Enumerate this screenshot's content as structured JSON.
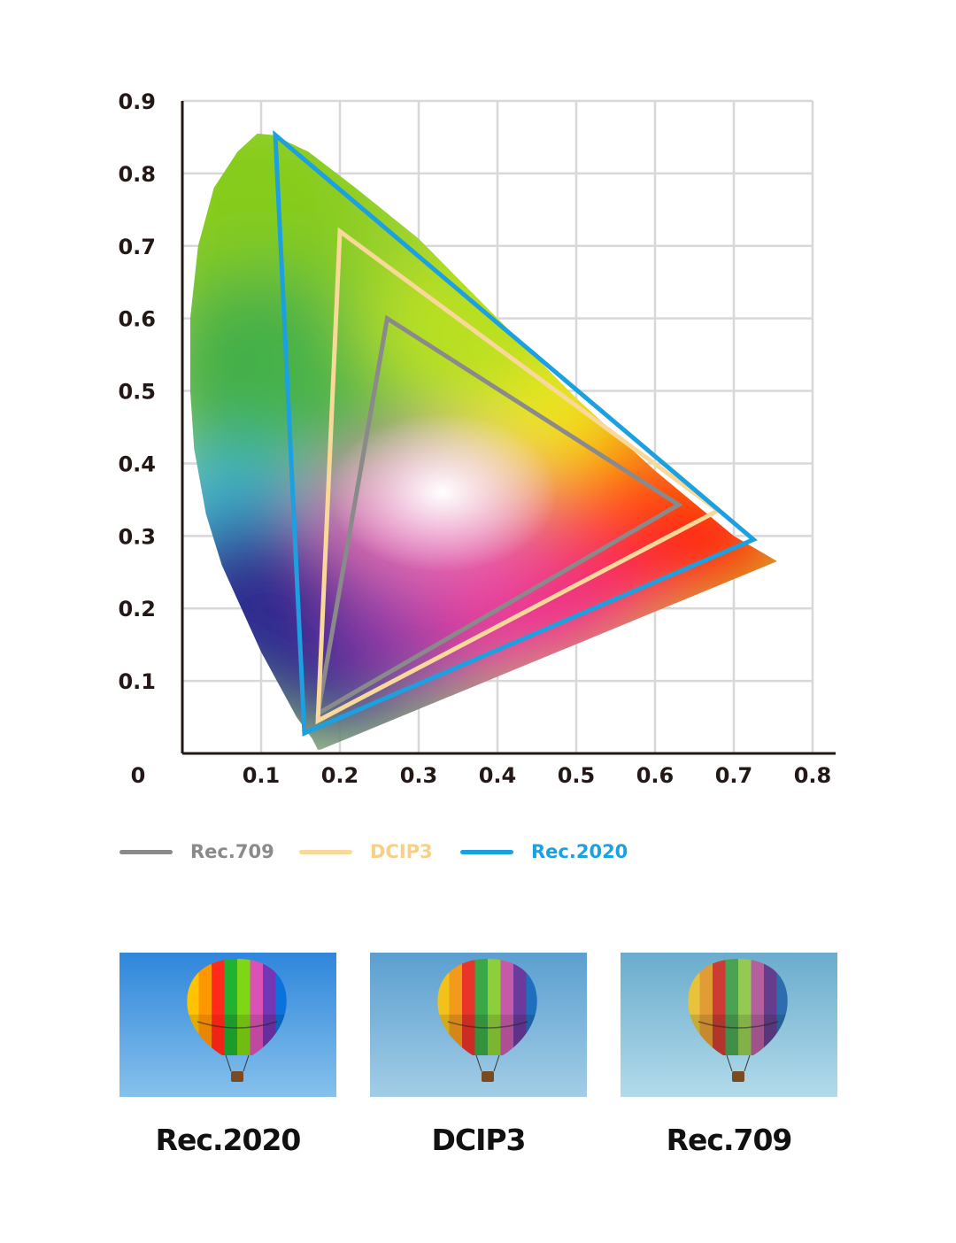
{
  "chart_data": {
    "type": "line",
    "title": "",
    "xlabel": "",
    "ylabel": "",
    "xlim": [
      0,
      0.8
    ],
    "ylim": [
      0,
      0.9
    ],
    "origin_label": "0",
    "x_ticks": [
      0.1,
      0.2,
      0.3,
      0.4,
      0.5,
      0.6,
      0.7,
      0.8
    ],
    "x_tick_labels": [
      "0.1",
      "0.2",
      "0.3",
      "0.4",
      "0.5",
      "0.6",
      "0.7",
      "0.8"
    ],
    "y_ticks": [
      0.1,
      0.2,
      0.3,
      0.4,
      0.5,
      0.6,
      0.7,
      0.8,
      0.9
    ],
    "y_tick_labels": [
      "0.1",
      "0.2",
      "0.3",
      "0.4",
      "0.5",
      "0.6",
      "0.7",
      "0.8",
      "0.9"
    ],
    "grid": true,
    "legend_position": "bottom",
    "spectral_locus": [
      [
        0.175,
        0.005
      ],
      [
        0.172,
        0.005
      ],
      [
        0.165,
        0.02
      ],
      [
        0.145,
        0.05
      ],
      [
        0.125,
        0.09
      ],
      [
        0.1,
        0.14
      ],
      [
        0.075,
        0.2
      ],
      [
        0.05,
        0.26
      ],
      [
        0.03,
        0.33
      ],
      [
        0.015,
        0.42
      ],
      [
        0.01,
        0.5
      ],
      [
        0.01,
        0.6
      ],
      [
        0.02,
        0.7
      ],
      [
        0.04,
        0.78
      ],
      [
        0.07,
        0.83
      ],
      [
        0.095,
        0.855
      ],
      [
        0.115,
        0.853
      ],
      [
        0.16,
        0.83
      ],
      [
        0.22,
        0.78
      ],
      [
        0.3,
        0.71
      ],
      [
        0.4,
        0.6
      ],
      [
        0.5,
        0.49
      ],
      [
        0.6,
        0.39
      ],
      [
        0.7,
        0.3
      ],
      [
        0.755,
        0.265
      ],
      [
        0.175,
        0.005
      ]
    ],
    "series": [
      {
        "name": "Rec.709",
        "color": "#8a8a8a",
        "points": [
          [
            0.26,
            0.6
          ],
          [
            0.63,
            0.343
          ],
          [
            0.172,
            0.055
          ]
        ]
      },
      {
        "name": "DCIP3",
        "color": "#f9d99a",
        "points": [
          [
            0.2,
            0.72
          ],
          [
            0.68,
            0.335
          ],
          [
            0.172,
            0.045
          ]
        ]
      },
      {
        "name": "Rec.2020",
        "color": "#1ca0e0",
        "points": [
          [
            0.118,
            0.853
          ],
          [
            0.725,
            0.295
          ],
          [
            0.155,
            0.028
          ]
        ]
      }
    ]
  },
  "legend": {
    "items": [
      {
        "label": "Rec.709",
        "color": "#8a8a8a"
      },
      {
        "label": "DCIP3",
        "color": "#f9d99a"
      },
      {
        "label": "Rec.2020",
        "color": "#1ca0e0"
      }
    ]
  },
  "comparison": {
    "items": [
      {
        "caption": "Rec.2020",
        "sky_top": "#2f86db",
        "sky_bottom": "#86c1ec",
        "saturation": 1.3
      },
      {
        "caption": "DCIP3",
        "sky_top": "#5b9fd0",
        "sky_bottom": "#a2cde6",
        "saturation": 1.0
      },
      {
        "caption": "Rec.709",
        "sky_top": "#6aaccd",
        "sky_bottom": "#b2dbea",
        "saturation": 0.8
      }
    ]
  }
}
